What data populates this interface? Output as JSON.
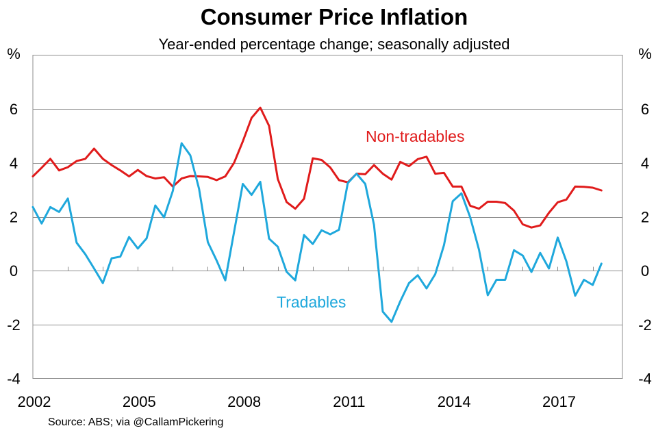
{
  "chart_data": {
    "type": "line",
    "title": "Consumer Price Inflation",
    "subtitle": "Year-ended percentage change; seasonally adjusted",
    "ylabel_left": "%",
    "ylabel_right": "%",
    "xlabel": "",
    "source": "Source: ABS; via @CallamPickering",
    "ylim": [
      -4,
      8
    ],
    "y_ticks": [
      -4,
      -2,
      0,
      2,
      4,
      6
    ],
    "y_tick_labels": [
      "-4",
      "-2",
      "0",
      "2",
      "4",
      "6"
    ],
    "x_range": [
      "Mar-2002",
      "Jun-2018"
    ],
    "x_tick_labels": [
      "2002",
      "2005",
      "2008",
      "2011",
      "2014",
      "2017"
    ],
    "x_tick_years": [
      2002,
      2005,
      2008,
      2011,
      2014,
      2017
    ],
    "frequency": "quarterly",
    "start_year": 2002,
    "end_year_extent": 2018.85,
    "grid": true,
    "series": [
      {
        "name": "Non-tradables",
        "color": "#e01b1b",
        "label_position": "above-right",
        "values": [
          3.5,
          3.82,
          4.15,
          3.72,
          3.84,
          4.07,
          4.15,
          4.53,
          4.15,
          3.92,
          3.72,
          3.5,
          3.74,
          3.51,
          3.42,
          3.47,
          3.12,
          3.42,
          3.51,
          3.5,
          3.48,
          3.36,
          3.5,
          4.0,
          4.8,
          5.67,
          6.05,
          5.38,
          3.4,
          2.55,
          2.3,
          2.67,
          4.17,
          4.11,
          3.83,
          3.36,
          3.28,
          3.6,
          3.58,
          3.92,
          3.6,
          3.38,
          4.04,
          3.88,
          4.14,
          4.23,
          3.6,
          3.63,
          3.12,
          3.12,
          2.41,
          2.3,
          2.56,
          2.56,
          2.51,
          2.23,
          1.72,
          1.6,
          1.68,
          2.15,
          2.54,
          2.64,
          3.12,
          3.11,
          3.08,
          2.98
        ]
      },
      {
        "name": "Tradables",
        "color": "#1fa8dc",
        "label_position": "below-middle",
        "values": [
          2.36,
          1.75,
          2.36,
          2.18,
          2.68,
          1.04,
          0.61,
          0.08,
          -0.46,
          0.46,
          0.52,
          1.25,
          0.82,
          1.2,
          2.42,
          1.98,
          2.96,
          4.73,
          4.28,
          3.04,
          1.06,
          0.38,
          -0.36,
          1.43,
          3.22,
          2.81,
          3.3,
          1.19,
          0.89,
          -0.04,
          -0.36,
          1.32,
          0.99,
          1.5,
          1.35,
          1.52,
          3.25,
          3.6,
          3.22,
          1.7,
          -1.52,
          -1.9,
          -1.14,
          -0.46,
          -0.17,
          -0.66,
          -0.13,
          0.95,
          2.58,
          2.87,
          1.98,
          0.78,
          -0.91,
          -0.34,
          -0.34,
          0.76,
          0.56,
          -0.05,
          0.66,
          0.08,
          1.23,
          0.34,
          -0.93,
          -0.34,
          -0.53,
          0.26
        ]
      }
    ],
    "colors": {
      "grid": "#8c8c8c",
      "frame": "#8c8c8c",
      "text": "#000000"
    }
  }
}
